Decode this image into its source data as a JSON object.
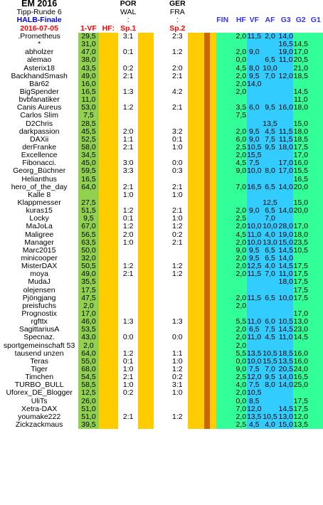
{
  "header": {
    "title": "EM 2016",
    "subtitle": "Tipp-Runde 6",
    "phase": "HALB-Finale",
    "date": "2016-07-05",
    "col_vf": "1-VF",
    "col_hf": "HF:",
    "sp1_label": "Sp.1",
    "sp2_label": "Sp.2",
    "match1_team1": "POR",
    "match1_team2": "WAL",
    "match1_sep": ":",
    "match2_team1": "GER",
    "match2_team2": "FRA",
    "match2_sep": ":",
    "cols": [
      "FIN",
      "HF",
      "VF",
      "AF",
      "G3",
      "G2",
      "G1"
    ]
  },
  "rows": [
    {
      "name": ".Prometheus",
      "vf": "29,5",
      "sp1": "3:1",
      "sp2": "2:3",
      "cols": [
        "",
        "",
        "2,0",
        "11,5",
        "2,0",
        "14,0",
        ""
      ]
    },
    {
      "name": "*",
      "vf": "31,0",
      "sp1": "",
      "sp2": "",
      "cols": [
        "",
        "",
        "",
        "",
        "",
        "16,5",
        "14,5"
      ]
    },
    {
      "name": "abholzer",
      "vf": "47,0",
      "sp1": "0:1",
      "sp2": "1:2",
      "cols": [
        "",
        "",
        "2,0",
        "9,0",
        "",
        "19,0",
        "17,0"
      ]
    },
    {
      "name": "alemao",
      "vf": "38,0",
      "sp1": "",
      "sp2": "",
      "cols": [
        "",
        "",
        "0,0",
        "",
        "6,5",
        "11,0",
        "20,5"
      ]
    },
    {
      "name": "Asterix18",
      "vf": "43,5",
      "sp1": "0:2",
      "sp2": "2:0",
      "cols": [
        "",
        "",
        "4,5",
        "8,0",
        "10,0",
        "",
        "21,0"
      ]
    },
    {
      "name": "BackhandSmash",
      "vf": "49,0",
      "sp1": "2:1",
      "sp2": "2:1",
      "cols": [
        "",
        "",
        "2,0",
        "9,5",
        "7,0",
        "12,0",
        "18,5"
      ]
    },
    {
      "name": "Bär62",
      "vf": "16,0",
      "sp1": "",
      "sp2": "",
      "cols": [
        "",
        "",
        "2,0",
        "14,0",
        "",
        "",
        ""
      ]
    },
    {
      "name": "BigSpender",
      "vf": "16,5",
      "sp1": "1:3",
      "sp2": "4:2",
      "cols": [
        "",
        "",
        "2,0",
        "",
        "",
        "",
        "14,5"
      ]
    },
    {
      "name": "bvbfanatiker",
      "vf": "11,0",
      "sp1": "",
      "sp2": "",
      "cols": [
        "",
        "",
        "",
        "",
        "",
        "",
        "11,0"
      ]
    },
    {
      "name": "Canis Aureus",
      "vf": "53,0",
      "sp1": "1:2",
      "sp2": "2:1",
      "cols": [
        "",
        "",
        "3,5",
        "6,0",
        "9,5",
        "16,0",
        "18,0"
      ]
    },
    {
      "name": "Carlos Slim",
      "vf": "7,5",
      "sp1": "",
      "sp2": "",
      "cols": [
        "",
        "",
        "7,5",
        "",
        "",
        "",
        ""
      ]
    },
    {
      "name": "D2Chris",
      "vf": "28,5",
      "sp1": "",
      "sp2": "",
      "cols": [
        "",
        "",
        "",
        "",
        "13,5",
        "",
        "15,0"
      ]
    },
    {
      "name": "darkpassion",
      "vf": "45,5",
      "sp1": "2:0",
      "sp2": "3:2",
      "cols": [
        "",
        "",
        "2,0",
        "9,5",
        "4,5",
        "11,5",
        "18,0"
      ]
    },
    {
      "name": "DAXii",
      "vf": "52,5",
      "sp1": "1:1",
      "sp2": "0:1",
      "cols": [
        "",
        "",
        "6,0",
        "9,0",
        "7,5",
        "11,5",
        "18,5"
      ]
    },
    {
      "name": "derFranke",
      "vf": "58,0",
      "sp1": "2:1",
      "sp2": "1:0",
      "cols": [
        "",
        "",
        "2,5",
        "10,5",
        "9,5",
        "18,0",
        "17,5"
      ]
    },
    {
      "name": "Excellence",
      "vf": "34,5",
      "sp1": "",
      "sp2": "",
      "cols": [
        "",
        "",
        "2,0",
        "15,5",
        "",
        "",
        "17,0"
      ]
    },
    {
      "name": "Fibonacci.",
      "vf": "45,0",
      "sp1": "3:0",
      "sp2": "0:0",
      "cols": [
        "",
        "",
        "4,5",
        "7,5",
        "",
        "17,0",
        "16,0"
      ]
    },
    {
      "name": "Georg_Büchner",
      "vf": "59,5",
      "sp1": "3:3",
      "sp2": "0:3",
      "cols": [
        "",
        "",
        "9,0",
        "10,0",
        "8,0",
        "17,0",
        "15,5"
      ]
    },
    {
      "name": "Helianthus",
      "vf": "16,5",
      "sp1": "",
      "sp2": "",
      "cols": [
        "",
        "",
        "",
        "",
        "",
        "",
        "16,5"
      ]
    },
    {
      "name": "hero_of_the_day",
      "vf": "64,0",
      "sp1": "2:1",
      "sp2": "2:1",
      "cols": [
        "",
        "",
        "7,0",
        "16,5",
        "6,5",
        "14,0",
        "20,0"
      ]
    },
    {
      "name": "Kalle 8",
      "vf": "",
      "sp1": "1:0",
      "sp2": "1:0",
      "cols": [
        "",
        "",
        "",
        "",
        "",
        "",
        ""
      ]
    },
    {
      "name": "Klappmesser",
      "vf": "27,5",
      "sp1": "",
      "sp2": "",
      "cols": [
        "",
        "",
        "",
        "",
        "12,5",
        "",
        "15,0"
      ]
    },
    {
      "name": "kuras15",
      "vf": "51,5",
      "sp1": "1:2",
      "sp2": "2:1",
      "cols": [
        "",
        "",
        "2,0",
        "9,0",
        "6,5",
        "14,0",
        "20,0"
      ]
    },
    {
      "name": "Locky",
      "vf": "9,5",
      "sp1": "0:1",
      "sp2": "1:0",
      "cols": [
        "",
        "",
        "2,5",
        "",
        "7,0",
        "",
        ""
      ]
    },
    {
      "name": "MaJoLa",
      "vf": "67,0",
      "sp1": "1:2",
      "sp2": "1:2",
      "cols": [
        "",
        "",
        "2,0",
        "10,0",
        "10,0",
        "28,0",
        "17,0"
      ]
    },
    {
      "name": "Maligree",
      "vf": "56,5",
      "sp1": "2:0",
      "sp2": "0:2",
      "cols": [
        "",
        "",
        "4,5",
        "11,0",
        "4,0",
        "19,0",
        "18,0"
      ]
    },
    {
      "name": "Manager",
      "vf": "63,5",
      "sp1": "1:0",
      "sp2": "2:1",
      "cols": [
        "",
        "",
        "2,0",
        "10,0",
        "13,0",
        "15,0",
        "23,5"
      ]
    },
    {
      "name": "Marc2015",
      "vf": "50,0",
      "sp1": "",
      "sp2": "",
      "cols": [
        "",
        "",
        "9,0",
        "9,5",
        "6,5",
        "14,5",
        "10,5"
      ]
    },
    {
      "name": "minicooper",
      "vf": "32,0",
      "sp1": "",
      "sp2": "",
      "cols": [
        "",
        "",
        "2,0",
        "9,5",
        "6,5",
        "14,0",
        ""
      ]
    },
    {
      "name": "MisterDAX",
      "vf": "50,5",
      "sp1": "1:2",
      "sp2": "1:2",
      "cols": [
        "",
        "",
        "2,0",
        "12,5",
        "4,0",
        "14,5",
        "17,5"
      ]
    },
    {
      "name": "moya",
      "vf": "49,0",
      "sp1": "2:1",
      "sp2": "1:2",
      "cols": [
        "",
        "",
        "2,0",
        "11,5",
        "7,0",
        "11,0",
        "17,5"
      ]
    },
    {
      "name": "MudaJ",
      "vf": "35,5",
      "sp1": "",
      "sp2": "",
      "cols": [
        "",
        "",
        "",
        "",
        "",
        "18,0",
        "17,5"
      ]
    },
    {
      "name": "olejensen",
      "vf": "17,5",
      "sp1": "",
      "sp2": "",
      "cols": [
        "",
        "",
        "",
        "",
        "",
        "",
        "17,5"
      ]
    },
    {
      "name": "Pjöngjang",
      "vf": "47,5",
      "sp1": "",
      "sp2": "",
      "cols": [
        "",
        "",
        "2,0",
        "11,5",
        "6,5",
        "10,0",
        "17,5"
      ]
    },
    {
      "name": "preisfuchs",
      "vf": "2,0",
      "sp1": "",
      "sp2": "",
      "cols": [
        "",
        "",
        "2,0",
        "",
        "",
        "",
        ""
      ]
    },
    {
      "name": "Prognostix",
      "vf": "17,0",
      "sp1": "",
      "sp2": "",
      "cols": [
        "",
        "",
        "",
        "",
        "",
        "",
        "17,0"
      ]
    },
    {
      "name": "rgfttx",
      "vf": "46,0",
      "sp1": "1:3",
      "sp2": "1:3",
      "cols": [
        "",
        "",
        "5,5",
        "11,0",
        "6,0",
        "10,5",
        "13,0"
      ]
    },
    {
      "name": "SagittariusA",
      "vf": "53,5",
      "sp1": "",
      "sp2": "",
      "cols": [
        "",
        "",
        "2,0",
        "6,5",
        "7,5",
        "14,5",
        "23,0"
      ]
    },
    {
      "name": "Specnaz.",
      "vf": "43,0",
      "sp1": "0:0",
      "sp2": "0:0",
      "cols": [
        "",
        "",
        "2,0",
        "11,0",
        "4,5",
        "11,0",
        "14,5"
      ]
    },
    {
      "name": "sportgemeinschaft 53",
      "vf": "2,0",
      "sp1": "",
      "sp2": "",
      "cols": [
        "",
        "",
        "2,0",
        "",
        "",
        "",
        ""
      ]
    },
    {
      "name": "tausend unzen",
      "vf": "64,0",
      "sp1": "1:2",
      "sp2": "1:1",
      "cols": [
        "",
        "",
        "5,5",
        "13,5",
        "10,5",
        "18,5",
        "16,0"
      ]
    },
    {
      "name": "Teras",
      "vf": "55,0",
      "sp1": "0:1",
      "sp2": "1:0",
      "cols": [
        "",
        "",
        "0,0",
        "10,0",
        "15,5",
        "13,5",
        "16,0"
      ]
    },
    {
      "name": "Tiger",
      "vf": "68,0",
      "sp1": "1:0",
      "sp2": "1:2",
      "cols": [
        "",
        "",
        "9,0",
        "7,5",
        "7,0",
        "20,5",
        "24,0"
      ]
    },
    {
      "name": "Timchen",
      "vf": "54,5",
      "sp1": "2:1",
      "sp2": "0:2",
      "cols": [
        "",
        "",
        "2,5",
        "12,0",
        "9,5",
        "14,0",
        "16,5"
      ]
    },
    {
      "name": "TURBO_BULL",
      "vf": "58,5",
      "sp1": "1:0",
      "sp2": "3:1",
      "cols": [
        "",
        "",
        "4,0",
        "7,5",
        "8,0",
        "14,0",
        "25,0"
      ]
    },
    {
      "name": "Uforex_DE_Blogger",
      "vf": "12,5",
      "sp1": "0:2",
      "sp2": "1:0",
      "cols": [
        "",
        "",
        "2,0",
        "10,5",
        "",
        "",
        ""
      ]
    },
    {
      "name": "UliTs",
      "vf": "26,0",
      "sp1": "",
      "sp2": "",
      "cols": [
        "",
        "",
        "0,0",
        "8,5",
        "",
        "",
        "17,5"
      ]
    },
    {
      "name": "Xetra-DAX",
      "vf": "51,0",
      "sp1": "",
      "sp2": "",
      "cols": [
        "",
        "",
        "7,0",
        "12,0",
        "",
        "14,5",
        "17,5"
      ]
    },
    {
      "name": "youmake222",
      "vf": "51,0",
      "sp1": "2:1",
      "sp2": "1:2",
      "cols": [
        "",
        "",
        "2,0",
        "13,5",
        "10,5",
        "13,0",
        "12,0"
      ]
    },
    {
      "name": "Zickzackmaus",
      "vf": "39,5",
      "sp1": "",
      "sp2": "",
      "cols": [
        "",
        "",
        "2,5",
        "4,5",
        "4,0",
        "15,0",
        "13,5"
      ]
    }
  ]
}
